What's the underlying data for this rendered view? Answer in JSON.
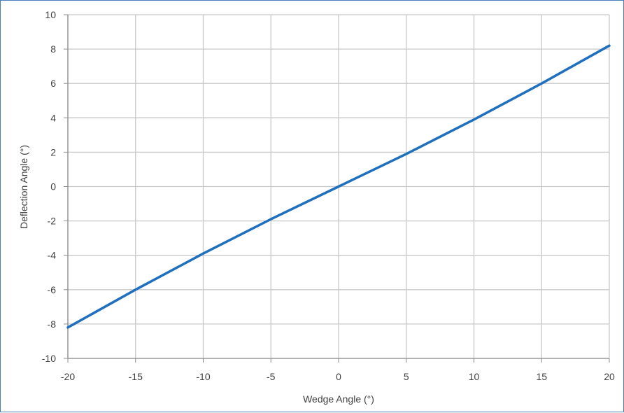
{
  "chart_data": {
    "type": "line",
    "title": "",
    "xlabel": "Wedge Angle (°)",
    "ylabel": "Deflection Angle (°)",
    "xlim": [
      -20,
      20
    ],
    "ylim": [
      -10,
      10
    ],
    "xticks": [
      "-20",
      "-15",
      "-10",
      "-5",
      "0",
      "5",
      "10",
      "15",
      "20"
    ],
    "yticks": [
      "10",
      "8",
      "6",
      "4",
      "2",
      "0",
      "-2",
      "-4",
      "-6",
      "-8",
      "-10"
    ],
    "grid": true,
    "legend": "none",
    "series": [
      {
        "color": "#1f6fbf",
        "x": [
          -20,
          -15,
          -10,
          -5,
          0,
          5,
          10,
          15,
          20
        ],
        "y": [
          -8.2,
          -6.0,
          -3.9,
          -1.9,
          0,
          1.9,
          3.9,
          6.0,
          8.2
        ]
      }
    ]
  }
}
